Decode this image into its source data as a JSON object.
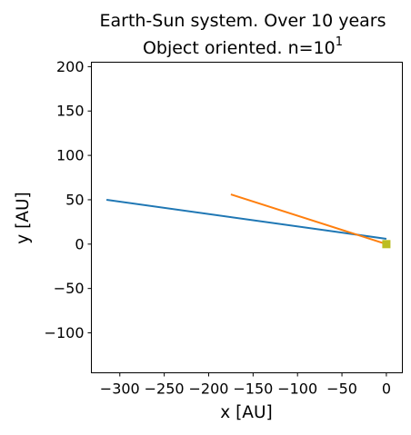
{
  "chart_data": {
    "type": "line",
    "title_line1": "Earth-Sun system. Over 10 years",
    "title_line2_main": "Object oriented. n=10",
    "title_line2_exp": "1",
    "xlabel": "x [AU]",
    "ylabel": "y [AU]",
    "xlim": [
      -332,
      18
    ],
    "ylim": [
      -145,
      205
    ],
    "xticks": [
      -300,
      -250,
      -200,
      -150,
      -100,
      -50,
      0
    ],
    "yticks": [
      -100,
      -50,
      0,
      50,
      100,
      150,
      200
    ],
    "grid": false,
    "series": [
      {
        "color": "#1f77b4",
        "x": [
          -315,
          0
        ],
        "y": [
          50,
          6
        ]
      },
      {
        "color": "#ff7f0e",
        "x": [
          -175,
          0
        ],
        "y": [
          56,
          0
        ]
      }
    ],
    "markers": [
      {
        "color": "#bcbd22",
        "x": 0,
        "y": 0
      }
    ]
  }
}
